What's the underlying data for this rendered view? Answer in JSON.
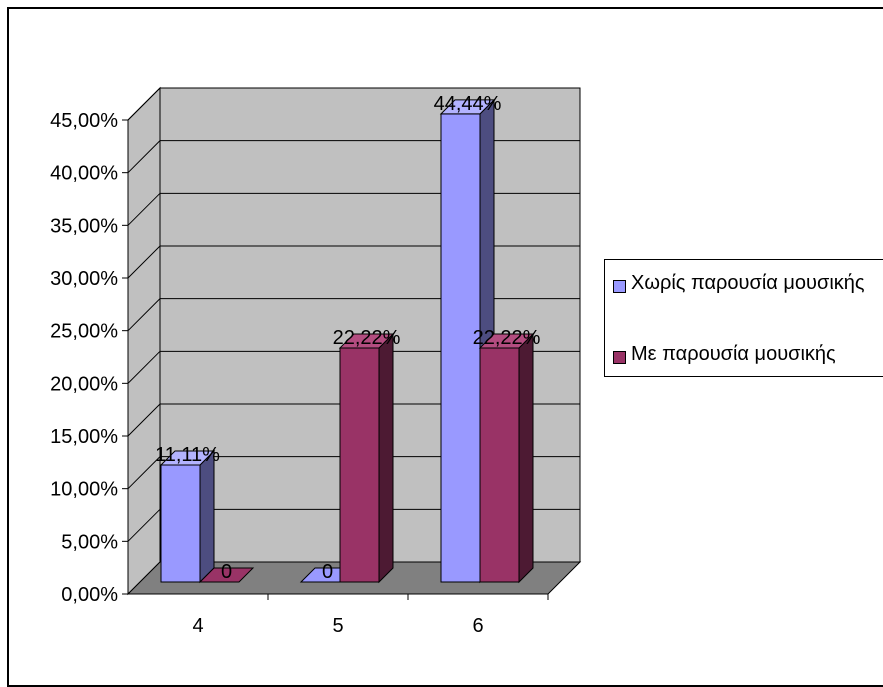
{
  "chart_data": {
    "type": "bar",
    "categories": [
      "4",
      "5",
      "6"
    ],
    "series": [
      {
        "name": "Χωρίς παρουσία μουσικής",
        "values": [
          11.11,
          0,
          44.44
        ],
        "labels": [
          "11,11%",
          "0",
          "44,44%"
        ],
        "color": "#9999ff",
        "side_color": "#4d4d80",
        "top_color": "#b3b3ff"
      },
      {
        "name": "Με παρουσία μουσικής",
        "values": [
          0,
          22.22,
          22.22
        ],
        "labels": [
          "0",
          "22,22%",
          "22,22%"
        ],
        "color": "#993366",
        "side_color": "#4d1a33",
        "top_color": "#b34d80"
      }
    ],
    "yticks": [
      "0,00%",
      "5,00%",
      "10,00%",
      "15,00%",
      "20,00%",
      "25,00%",
      "30,00%",
      "35,00%",
      "40,00%",
      "45,00%"
    ],
    "ylim": [
      0,
      45
    ],
    "grid": true,
    "legend": "right",
    "wall_color": "#c0c0c0",
    "floor_color": "#808080",
    "title": "",
    "xlabel": "",
    "ylabel": ""
  }
}
